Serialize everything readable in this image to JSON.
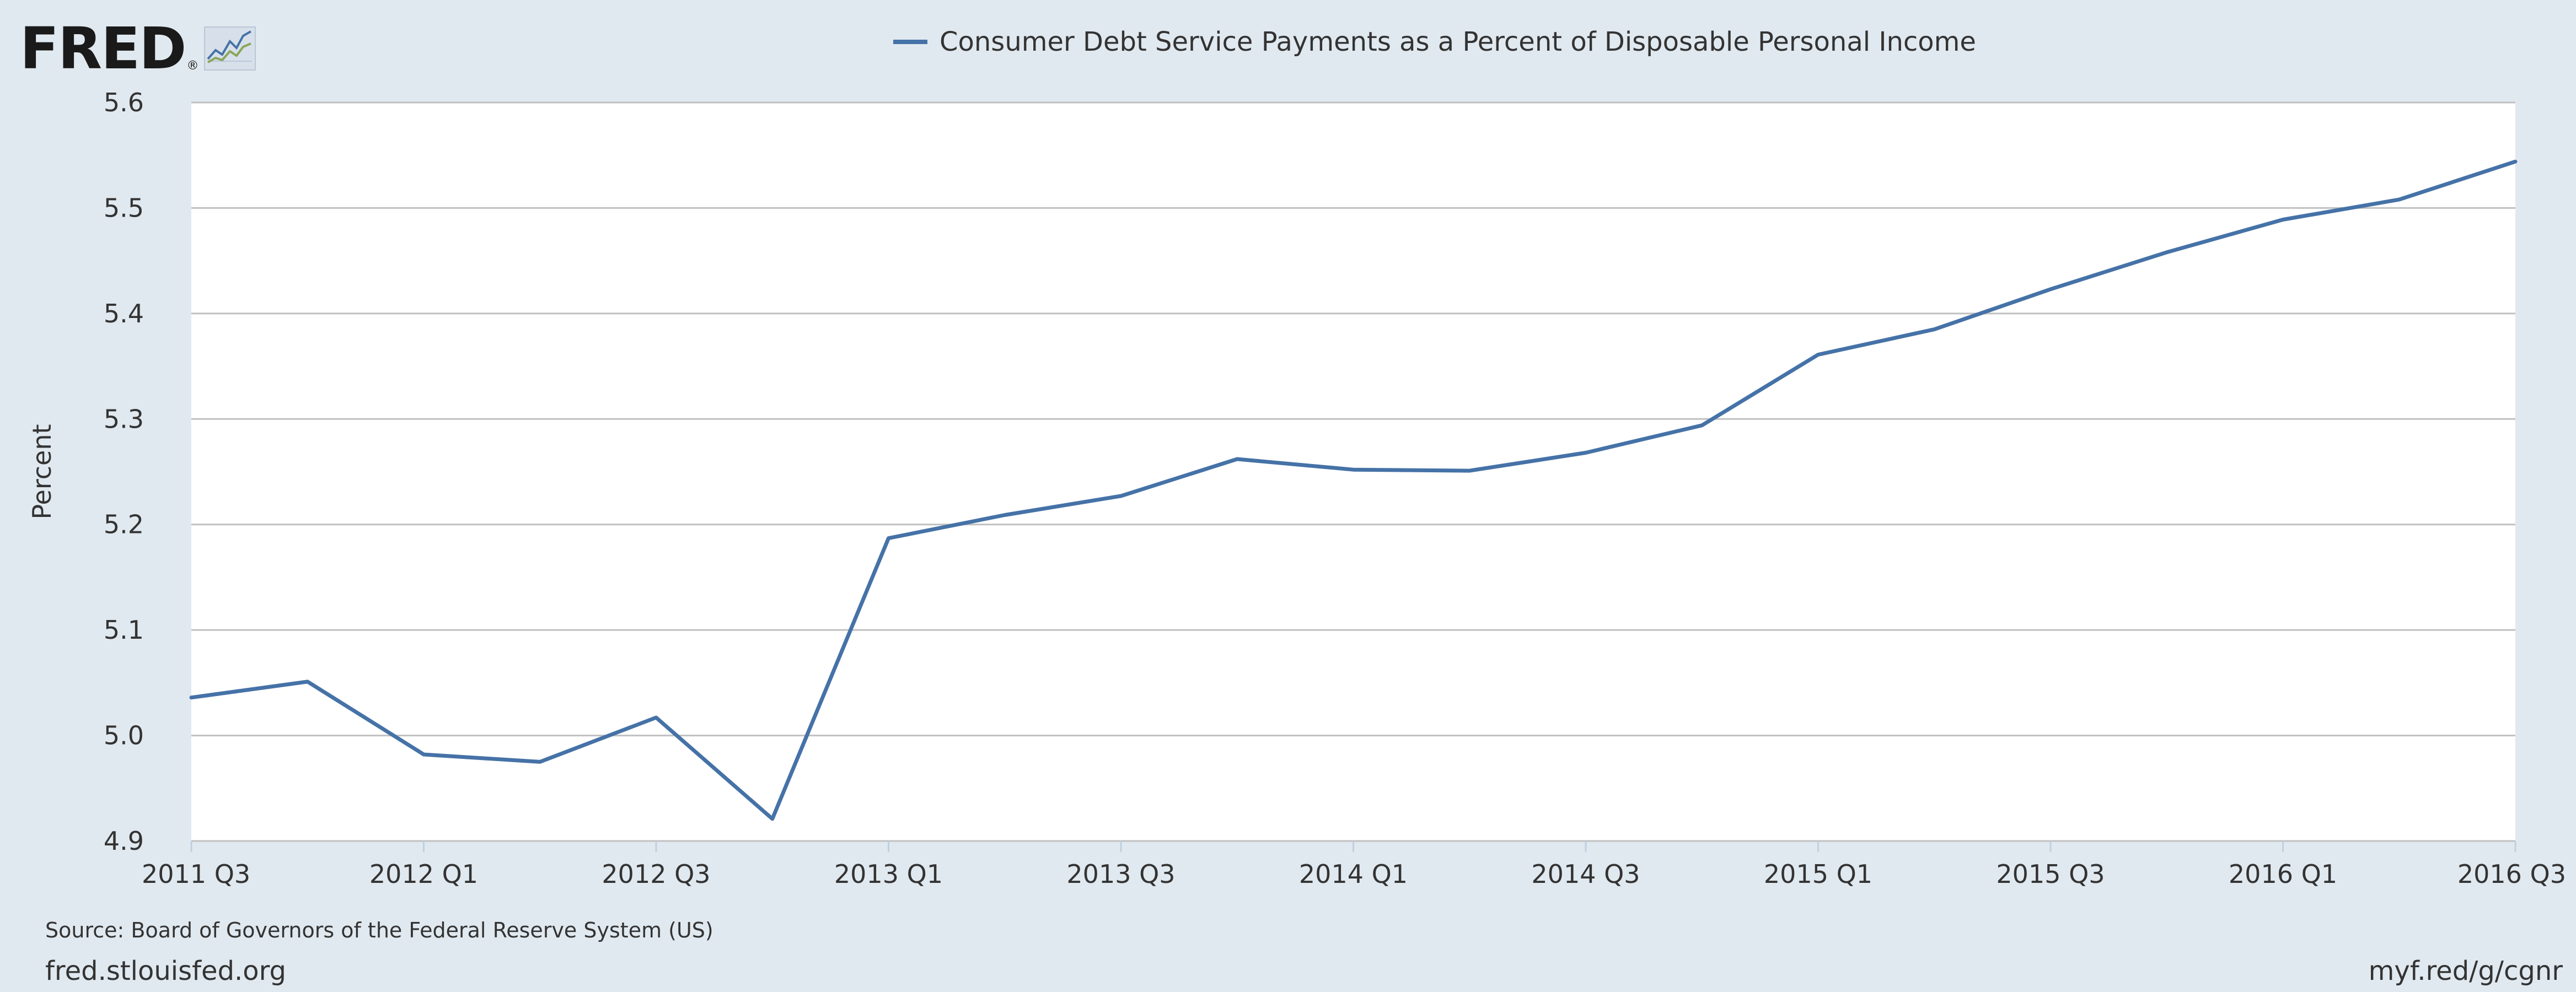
{
  "logo": {
    "text": "FRED",
    "reg": "®"
  },
  "chart_data": {
    "type": "line",
    "title": "",
    "ylabel": "Percent",
    "xlabel": "",
    "ylim": [
      4.9,
      5.6
    ],
    "yticks": [
      "4.9",
      "5.0",
      "5.1",
      "5.2",
      "5.3",
      "5.4",
      "5.5",
      "5.6"
    ],
    "x": [
      "2011 Q3",
      "2011 Q4",
      "2012 Q1",
      "2012 Q2",
      "2012 Q3",
      "2012 Q4",
      "2013 Q1",
      "2013 Q2",
      "2013 Q3",
      "2013 Q4",
      "2014 Q1",
      "2014 Q2",
      "2014 Q3",
      "2014 Q4",
      "2015 Q1",
      "2015 Q2",
      "2015 Q3",
      "2015 Q4",
      "2016 Q1",
      "2016 Q2",
      "2016 Q3"
    ],
    "xticks": [
      "2011 Q3",
      "2012 Q1",
      "2012 Q3",
      "2013 Q1",
      "2013 Q3",
      "2014 Q1",
      "2014 Q3",
      "2015 Q1",
      "2015 Q3",
      "2016 Q1",
      "2016 Q3"
    ],
    "series": [
      {
        "name": "Consumer Debt Service Payments as a Percent of Disposable Personal Income",
        "color": "#4572a7",
        "values": [
          5.036,
          5.051,
          4.982,
          4.975,
          5.017,
          4.921,
          5.187,
          5.209,
          5.227,
          5.262,
          5.252,
          5.251,
          5.268,
          5.294,
          5.361,
          5.385,
          5.423,
          5.458,
          5.489,
          5.508,
          5.544
        ]
      }
    ],
    "grid": true,
    "legend": "top-center"
  },
  "footer": {
    "source": "Source: Board of Governors of the Federal Reserve System (US)",
    "site": "fred.stlouisfed.org",
    "link": "myf.red/g/cgnr"
  }
}
